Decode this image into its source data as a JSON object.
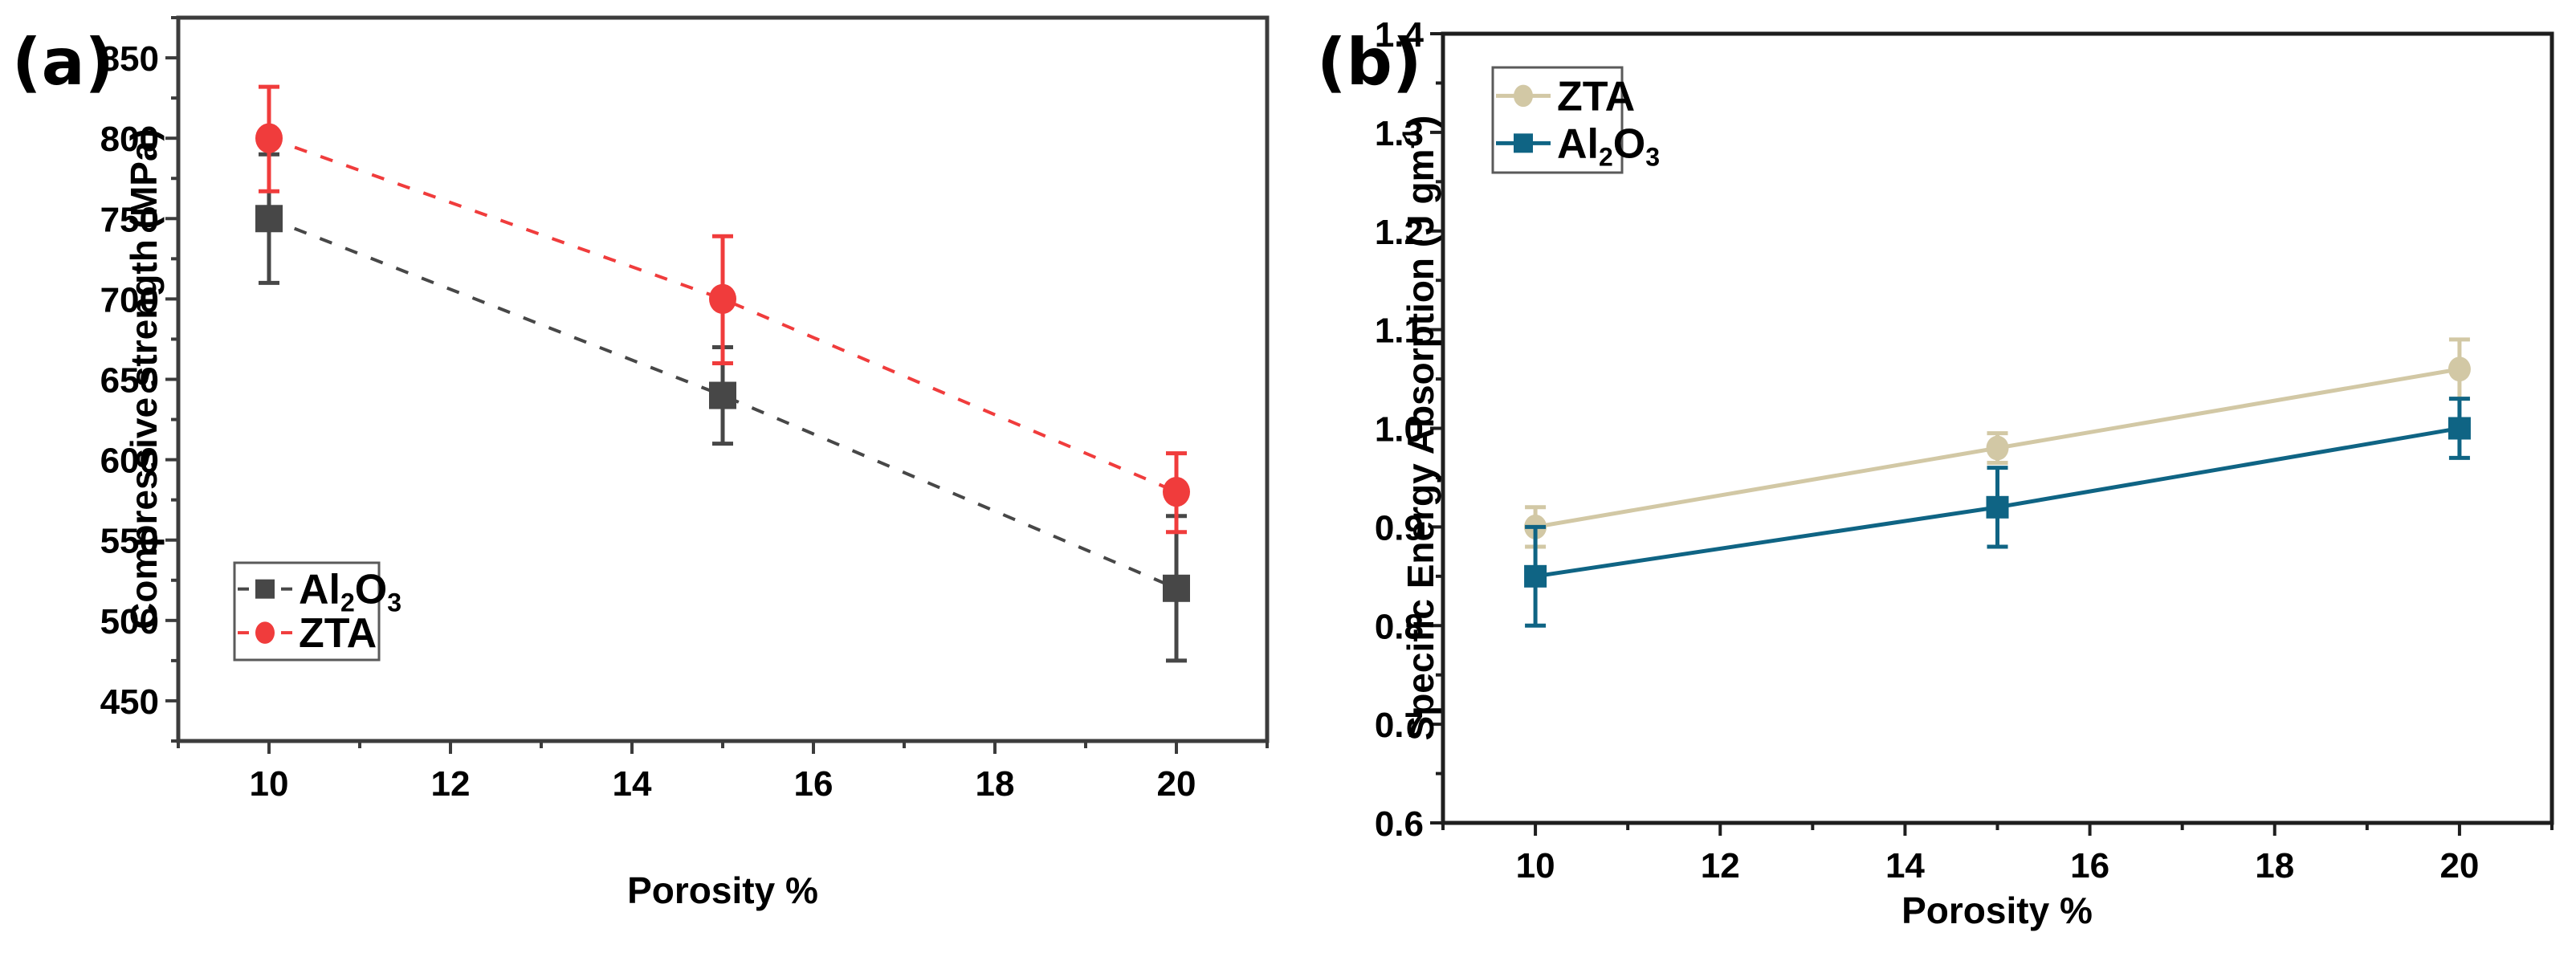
{
  "chart_data": [
    {
      "type": "line",
      "panel_label": "(a)",
      "title": "",
      "xlabel": "Porosity %",
      "ylabel": "Compressive strength (MPa)",
      "xlim": [
        9,
        21
      ],
      "ylim": [
        425,
        875
      ],
      "xticks": [
        10,
        12,
        14,
        16,
        18,
        20
      ],
      "xtick_labels": [
        "10",
        "12",
        "14",
        "16",
        "18",
        "20"
      ],
      "yticks": [
        450,
        500,
        550,
        600,
        650,
        700,
        750,
        800,
        850
      ],
      "ytick_labels": [
        "450",
        "500",
        "550",
        "600",
        "650",
        "700",
        "750",
        "800",
        "850"
      ],
      "grid": false,
      "legend_position": "center-left",
      "x": [
        10,
        15,
        20
      ],
      "series": [
        {
          "name": "Al2O3",
          "label_main": "Al",
          "label_sub1": "2",
          "label_mid": "O",
          "label_sub2": "3",
          "marker": "square",
          "line_style": "dashed",
          "color": "#474747",
          "values": [
            750,
            640,
            520
          ],
          "err_low": [
            710,
            610,
            475
          ],
          "err_high": [
            790,
            670,
            565
          ]
        },
        {
          "name": "ZTA",
          "label_main": "ZTA",
          "marker": "circle",
          "line_style": "dashed",
          "color": "#f03c3c",
          "values": [
            800,
            700,
            580
          ],
          "err_low": [
            767,
            660,
            555
          ],
          "err_high": [
            832,
            739,
            604
          ]
        }
      ]
    },
    {
      "type": "line",
      "panel_label": "(b)",
      "title": "",
      "xlabel": "Porosity %",
      "ylabel": "Specific Energy Absorption (J gm",
      "ylabel_sup": "-1",
      "ylabel_end": ")",
      "xlim": [
        9,
        21
      ],
      "ylim": [
        0.6,
        1.4
      ],
      "xticks": [
        10,
        12,
        14,
        16,
        18,
        20
      ],
      "xtick_labels": [
        "10",
        "12",
        "14",
        "16",
        "18",
        "20"
      ],
      "yticks": [
        0.6,
        0.7,
        0.8,
        0.9,
        1.0,
        1.1,
        1.2,
        1.3,
        1.4
      ],
      "ytick_labels": [
        "0.6",
        "0.7",
        "0.8",
        "0.9",
        "1.0",
        "1.1",
        "1.2",
        "1.3",
        "1.4"
      ],
      "grid": false,
      "legend_position": "top-left",
      "x": [
        10,
        15,
        20
      ],
      "series": [
        {
          "name": "ZTA",
          "label_main": "ZTA",
          "marker": "circle",
          "line_style": "solid",
          "color": "#d2c8a5",
          "values": [
            0.9,
            0.98,
            1.06
          ],
          "err_low": [
            0.88,
            0.965,
            1.03
          ],
          "err_high": [
            0.92,
            0.995,
            1.09
          ]
        },
        {
          "name": "Al2O3",
          "label_main": "Al",
          "label_sub1": "2",
          "label_mid": "O",
          "label_sub2": "3",
          "marker": "square",
          "line_style": "solid",
          "color": "#0f6484",
          "values": [
            0.85,
            0.92,
            1.0
          ],
          "err_low": [
            0.8,
            0.88,
            0.97
          ],
          "err_high": [
            0.9,
            0.96,
            1.03
          ]
        }
      ]
    }
  ]
}
